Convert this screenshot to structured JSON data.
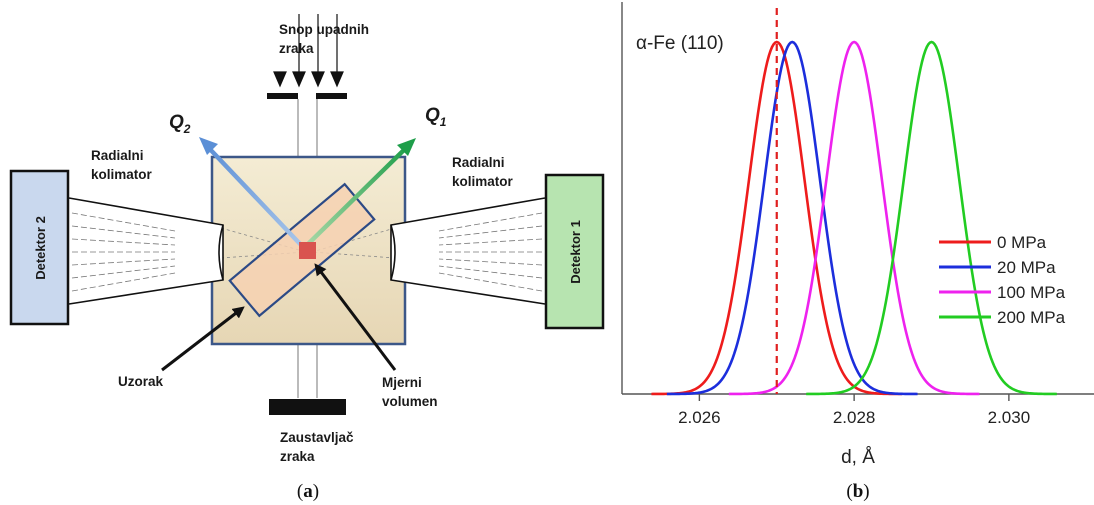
{
  "diagram": {
    "beam_label": "Snop upadnih\nzraka",
    "q2_label": "Q",
    "q2_sub": "2",
    "q1_label": "Q",
    "q1_sub": "1",
    "collimator_left": "Radialni\nkolimator",
    "collimator_right": "Radialni\nkolimator",
    "detector_left": "Detektor 2",
    "detector_right": "Detektor 1",
    "sample_label": "Uzorak",
    "volume_label": "Mjerni\nvolumen",
    "stopper_label": "Zaustavljač\nzraka",
    "caption": "(a)",
    "caption_letter": "a",
    "colors": {
      "q1_arrow": "#1e9e4a",
      "q2_arrow": "#5b8fd6",
      "detector_left_fill": "#c9d8ee",
      "detector_right_fill": "#b7e4b0",
      "gauge_volume": "#d9534f"
    }
  },
  "chart_data": {
    "type": "line",
    "title": "α-Fe (110)",
    "xlabel": "d, Å",
    "ylabel": "",
    "xlim": [
      2.025,
      2.0311
    ],
    "ticks": [
      "2.026",
      "2.028",
      "2.030"
    ],
    "tick_values": [
      2.026,
      2.028,
      2.03
    ],
    "reference_line": {
      "x": 2.027,
      "style": "dashed",
      "color": "#e02020"
    },
    "series": [
      {
        "name": "0 MPa",
        "color": "#ee1c1c",
        "center": 2.027,
        "sigma": 0.00036,
        "peak": 1.0
      },
      {
        "name": "20 MPa",
        "color": "#1c2edc",
        "center": 2.0272,
        "sigma": 0.00036,
        "peak": 1.0
      },
      {
        "name": "100 MPa",
        "color": "#ee22ee",
        "center": 2.028,
        "sigma": 0.00036,
        "peak": 1.0
      },
      {
        "name": "200 MPa",
        "color": "#22cc22",
        "center": 2.029,
        "sigma": 0.00036,
        "peak": 1.0
      }
    ],
    "caption": "(b)",
    "caption_letter": "b",
    "grid": false,
    "legend_placement": "right"
  }
}
